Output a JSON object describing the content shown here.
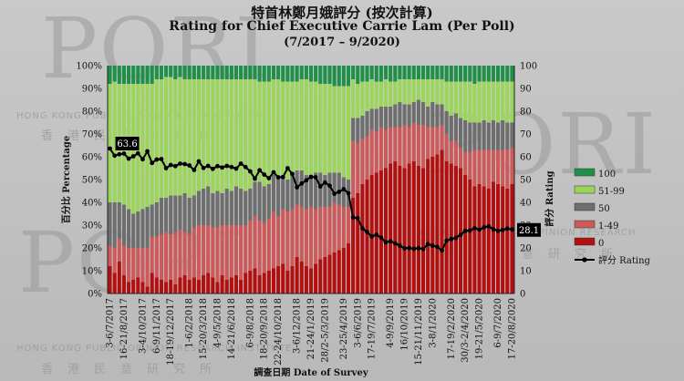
{
  "title_zh": "特首林鄭月娥評分 (按次計算)",
  "title_en": "Rating for Chief Executive Carrie Lam (Per Poll)",
  "period": "(7/2017 – 9/2020)",
  "watermark": {
    "org_en": "HONG KONG PUBLIC OPINION RESEARCH INSTITUTE",
    "org_zh": "香港民意研究所",
    "logo": "PORI"
  },
  "chart_data": {
    "type": "bar+line",
    "stacked": true,
    "title": "Rating for Chief Executive Carrie Lam (Per Poll)",
    "xlabel": "調查日期 Date of Survey",
    "ylabel_left": "百分比 Percentage",
    "ylabel_right": "評分 Rating",
    "ylim_left": [
      0,
      100
    ],
    "ylim_right": [
      0,
      100
    ],
    "yticks_left": [
      "0%",
      "10%",
      "20%",
      "30%",
      "40%",
      "50%",
      "60%",
      "70%",
      "80%",
      "90%",
      "100%"
    ],
    "yticks_right": [
      "0",
      "10",
      "20",
      "30",
      "40",
      "50",
      "60",
      "70",
      "80",
      "90",
      "100"
    ],
    "x_tick_labels": [
      "3-6/7/2017",
      "16-21/8/2017",
      "3-4/10/2017",
      "6-9/11/2017",
      "18-19/12/2017",
      "1-6/2/2018",
      "15-20/3/2018",
      "4-9/5/2018",
      "14-21/6/2018",
      "6-9/8/2018",
      "18-20/9/2018",
      "22-24/10/2018",
      "3-6/12/2018",
      "21-24/1/2019",
      "28/2-5/3/2019",
      "23-25/4/2019",
      "3-6/6/2019",
      "17-19/7/2019",
      "4-9/9/2019",
      "16/10/2019",
      "15-21/11/2019",
      "3-8/1/2020",
      "17-19/2/2020",
      "30/3-2/4/2020",
      "19-21/5/2020",
      "6-9/7/2020",
      "17-20/8/2020"
    ],
    "legend": [
      {
        "name": "100",
        "color": "#1f8f4a"
      },
      {
        "name": "51-99",
        "color": "#9bd65a"
      },
      {
        "name": "50",
        "color": "#6e6e6e"
      },
      {
        "name": "1-49",
        "color": "#cc5a5a"
      },
      {
        "name": "0",
        "color": "#b30f0f"
      },
      {
        "name": "評分 Rating",
        "color": "#000000"
      }
    ],
    "legend_position": "right",
    "annotations": [
      {
        "label": "63.6",
        "rating": 63.6
      },
      {
        "label": "28.1",
        "rating": 28.1
      }
    ],
    "rating": [
      63.6,
      60.5,
      61.1,
      61.4,
      59.2,
      60.2,
      61.5,
      58.9,
      62.4,
      57.3,
      58.8,
      59.0,
      55.0,
      56.4,
      55.9,
      57.0,
      56.8,
      56.2,
      54.2,
      58.0,
      55.1,
      56.0,
      54.7,
      55.9,
      55.3,
      56.0,
      55.5,
      54.8,
      57.0,
      55.5,
      53.6,
      50.4,
      54.1,
      52.2,
      50.6,
      53.2,
      51.0,
      51.1,
      55.0,
      52.5,
      46.6,
      48.3,
      49.7,
      51.2,
      51.0,
      47.0,
      48.7,
      47.3,
      43.8,
      44.6,
      45.8,
      44.0,
      33.4,
      33.0,
      28.6,
      27.0,
      25.0,
      25.8,
      24.5,
      22.5,
      22.9,
      22.0,
      21.0,
      19.8,
      20.0,
      19.6,
      19.9,
      19.5,
      21.7,
      21.0,
      20.5,
      18.9,
      23.2,
      23.9,
      24.4,
      25.8,
      27.5,
      27.6,
      28.7,
      28.0,
      29.0,
      29.5,
      28.2,
      27.5,
      27.9,
      28.5,
      28.1
    ],
    "series": [
      {
        "name": "0",
        "values": [
          12,
          9,
          14,
          8,
          5,
          6,
          7,
          5,
          3,
          9,
          7,
          6,
          5,
          6,
          4,
          7,
          8,
          6,
          7,
          6,
          8,
          9,
          7,
          5,
          8,
          6,
          7,
          8,
          6,
          9,
          10,
          11,
          8,
          9,
          10,
          11,
          12,
          13,
          10,
          12,
          16,
          14,
          12,
          11,
          13,
          15,
          16,
          17,
          18,
          19,
          20,
          22,
          42,
          44,
          48,
          50,
          52,
          53,
          54,
          55,
          57,
          58,
          56,
          55,
          57,
          58,
          56,
          55,
          59,
          60,
          61,
          63,
          58,
          57,
          56,
          55,
          52,
          50,
          47,
          48,
          47,
          46,
          49,
          48,
          47,
          46,
          48
        ]
      },
      {
        "name": "1-49",
        "values": [
          9,
          11,
          10,
          13,
          15,
          14,
          13,
          15,
          17,
          16,
          18,
          20,
          22,
          20,
          23,
          21,
          19,
          20,
          22,
          24,
          22,
          21,
          22,
          24,
          22,
          24,
          23,
          22,
          24,
          21,
          22,
          23,
          24,
          22,
          23,
          25,
          22,
          24,
          26,
          25,
          23,
          24,
          25,
          27,
          24,
          23,
          22,
          21,
          22,
          20,
          18,
          16,
          25,
          22,
          20,
          19,
          20,
          18,
          19,
          17,
          16,
          15,
          17,
          19,
          16,
          17,
          18,
          19,
          14,
          13,
          12,
          11,
          12,
          10,
          11,
          9,
          10,
          12,
          16,
          15,
          16,
          17,
          14,
          15,
          16,
          17,
          16
        ]
      },
      {
        "name": "50",
        "values": [
          19,
          20,
          16,
          18,
          17,
          15,
          16,
          17,
          18,
          14,
          15,
          16,
          15,
          17,
          16,
          15,
          17,
          16,
          14,
          15,
          16,
          17,
          15,
          16,
          14,
          16,
          15,
          17,
          16,
          15,
          14,
          15,
          17,
          16,
          15,
          16,
          17,
          15,
          14,
          16,
          15,
          16,
          15,
          14,
          16,
          15,
          14,
          15,
          13,
          14,
          13,
          12,
          10,
          11,
          10,
          11,
          9,
          10,
          9,
          10,
          9,
          10,
          11,
          9,
          10,
          9,
          11,
          10,
          9,
          11,
          10,
          9,
          10,
          11,
          12,
          13,
          14,
          13,
          12,
          12,
          13,
          12,
          13,
          12,
          13,
          12,
          11
        ]
      },
      {
        "name": "51-99",
        "values": [
          52,
          53,
          52,
          53,
          55,
          57,
          56,
          55,
          54,
          53,
          54,
          52,
          53,
          52,
          51,
          52,
          50,
          52,
          51,
          49,
          48,
          47,
          50,
          49,
          50,
          48,
          49,
          47,
          48,
          49,
          48,
          45,
          44,
          46,
          45,
          42,
          43,
          41,
          43,
          40,
          39,
          40,
          42,
          41,
          40,
          39,
          40,
          39,
          38,
          38,
          40,
          41,
          17,
          15,
          15,
          13,
          13,
          12,
          11,
          12,
          11,
          10,
          10,
          11,
          11,
          10,
          9,
          10,
          12,
          10,
          11,
          11,
          13,
          15,
          14,
          16,
          17,
          18,
          17,
          18,
          17,
          18,
          17,
          18,
          17,
          18,
          18
        ]
      },
      {
        "name": "100",
        "values": [
          8,
          7,
          8,
          8,
          8,
          8,
          8,
          8,
          8,
          8,
          6,
          6,
          5,
          5,
          6,
          5,
          6,
          6,
          6,
          6,
          6,
          6,
          6,
          6,
          6,
          6,
          6,
          6,
          6,
          6,
          6,
          6,
          7,
          7,
          7,
          6,
          6,
          7,
          7,
          7,
          7,
          6,
          6,
          7,
          7,
          8,
          8,
          8,
          9,
          9,
          9,
          9,
          6,
          8,
          7,
          7,
          6,
          7,
          7,
          6,
          7,
          7,
          6,
          6,
          6,
          6,
          6,
          6,
          6,
          6,
          6,
          6,
          7,
          7,
          7,
          7,
          7,
          7,
          8,
          7,
          7,
          7,
          7,
          7,
          7,
          7,
          7
        ]
      }
    ]
  }
}
